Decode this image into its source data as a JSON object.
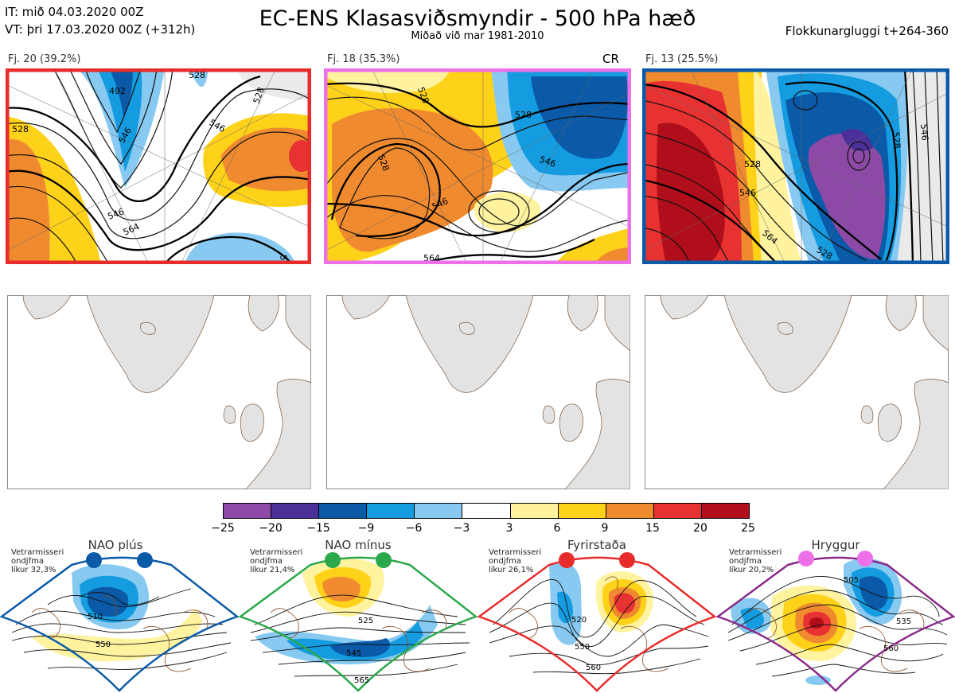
{
  "header": {
    "it": "IT: mið 04.03.2020 00Z",
    "vt": "VT: þri 17.03.2020 00Z  (+312h)",
    "title": "EC-ENS Klasasviðsmyndir - 500 hPa hæð",
    "subtitle": "Miðað við mar 1981-2010",
    "window": "Flokkunargluggi t+264-360"
  },
  "clusters": [
    {
      "label": "Fj. 20 (39.2%)",
      "color": "#e82c2c",
      "marker": ""
    },
    {
      "label": "Fj. 18 (35.3%)",
      "color": "#ee70e8",
      "marker": "CR"
    },
    {
      "label": "Fj. 13 (25.5%)",
      "color": "#0a5aa8",
      "marker": ""
    }
  ],
  "contour_labels": {
    "c1": [
      "492",
      "528",
      "546",
      "528",
      "546",
      "564",
      "546",
      "546",
      "528"
    ],
    "c2": [
      "528",
      "528",
      "546",
      "564",
      "546",
      "528"
    ],
    "c3": [
      "528",
      "546",
      "564",
      "528",
      "546",
      "528"
    ]
  },
  "colorbar": {
    "ticks": [
      "−25",
      "−20",
      "−15",
      "−9",
      "−6",
      "−3",
      "3",
      "6",
      "9",
      "15",
      "20",
      "25"
    ],
    "colors": [
      "#8c4aa6",
      "#4b3099",
      "#0a5aa8",
      "#159ce0",
      "#87c9f0",
      "#ffffff",
      "#fff3a0",
      "#ffd21a",
      "#f08a2e",
      "#e83232",
      "#b00e1a"
    ]
  },
  "regimes": [
    {
      "name": "NAO plús",
      "caption": "Vetrarmisseri\nondjfma\nlíkur 32,3%",
      "color": "#0a5aa8",
      "dot": "#0a5aa8",
      "labels": [
        "510",
        "550"
      ]
    },
    {
      "name": "NAO mínus",
      "caption": "Vetrarmisseri\nondjfma\nlíkur 21,4%",
      "color": "#2aa84a",
      "dot": "#2aa84a",
      "labels": [
        "525",
        "545",
        "565"
      ]
    },
    {
      "name": "Fyrirstaða",
      "caption": "Vetrarmisseri\nondjfma\nlíkur 26,1%",
      "color": "#e82c2c",
      "dot": "#e82c2c",
      "labels": [
        "520",
        "550",
        "560"
      ]
    },
    {
      "name": "Hryggur",
      "caption": "Vetrarmisseri\nondjfma\nlíkur 20,2%",
      "color": "#8a2a8a",
      "dot": "#ee70e8",
      "labels": [
        "505",
        "535",
        "560"
      ]
    }
  ]
}
